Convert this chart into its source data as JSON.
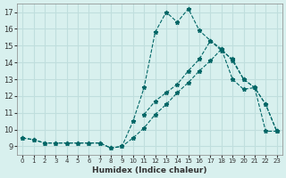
{
  "background_color": "#d8f0ee",
  "grid_color": "#c0dedd",
  "line_color": "#006666",
  "xlabel": "Humidex (Indice chaleur)",
  "ylim": [
    8.5,
    17.5
  ],
  "xlim": [
    -0.5,
    23.5
  ],
  "yticks": [
    9,
    10,
    11,
    12,
    13,
    14,
    15,
    16,
    17
  ],
  "xticks": [
    0,
    1,
    2,
    3,
    4,
    5,
    6,
    7,
    8,
    9,
    10,
    11,
    12,
    13,
    14,
    15,
    16,
    17,
    18,
    19,
    20,
    21,
    22,
    23
  ],
  "series": [
    {
      "x": [
        0,
        1,
        2,
        3,
        4,
        5,
        6,
        7,
        8,
        9,
        10,
        11,
        12,
        13,
        14,
        15,
        16,
        17,
        18,
        19,
        20,
        21,
        22,
        23
      ],
      "y": [
        9.5,
        9.4,
        9.2,
        9.2,
        9.2,
        9.2,
        9.2,
        9.2,
        8.9,
        9.0,
        9.5,
        10.1,
        10.9,
        11.5,
        12.2,
        12.8,
        13.5,
        14.1,
        14.8,
        13.0,
        12.4,
        12.5,
        9.9,
        9.9
      ]
    },
    {
      "x": [
        0,
        1,
        2,
        3,
        4,
        5,
        6,
        7,
        8,
        9,
        10,
        11,
        12,
        13,
        14,
        15,
        16,
        17,
        18,
        19,
        20,
        21,
        22,
        23
      ],
      "y": [
        9.5,
        9.4,
        9.2,
        9.2,
        9.2,
        9.2,
        9.2,
        9.2,
        8.9,
        9.0,
        10.5,
        12.5,
        15.8,
        17.0,
        16.4,
        17.2,
        15.9,
        15.3,
        14.7,
        14.2,
        13.0,
        12.5,
        11.5,
        9.9
      ]
    },
    {
      "x": [
        11,
        12,
        13,
        14,
        15,
        16,
        17,
        18,
        19,
        20,
        21,
        22,
        23
      ],
      "y": [
        10.9,
        11.7,
        12.2,
        12.7,
        13.5,
        14.2,
        15.3,
        14.8,
        14.1,
        13.0,
        12.5,
        11.5,
        9.9
      ]
    }
  ]
}
